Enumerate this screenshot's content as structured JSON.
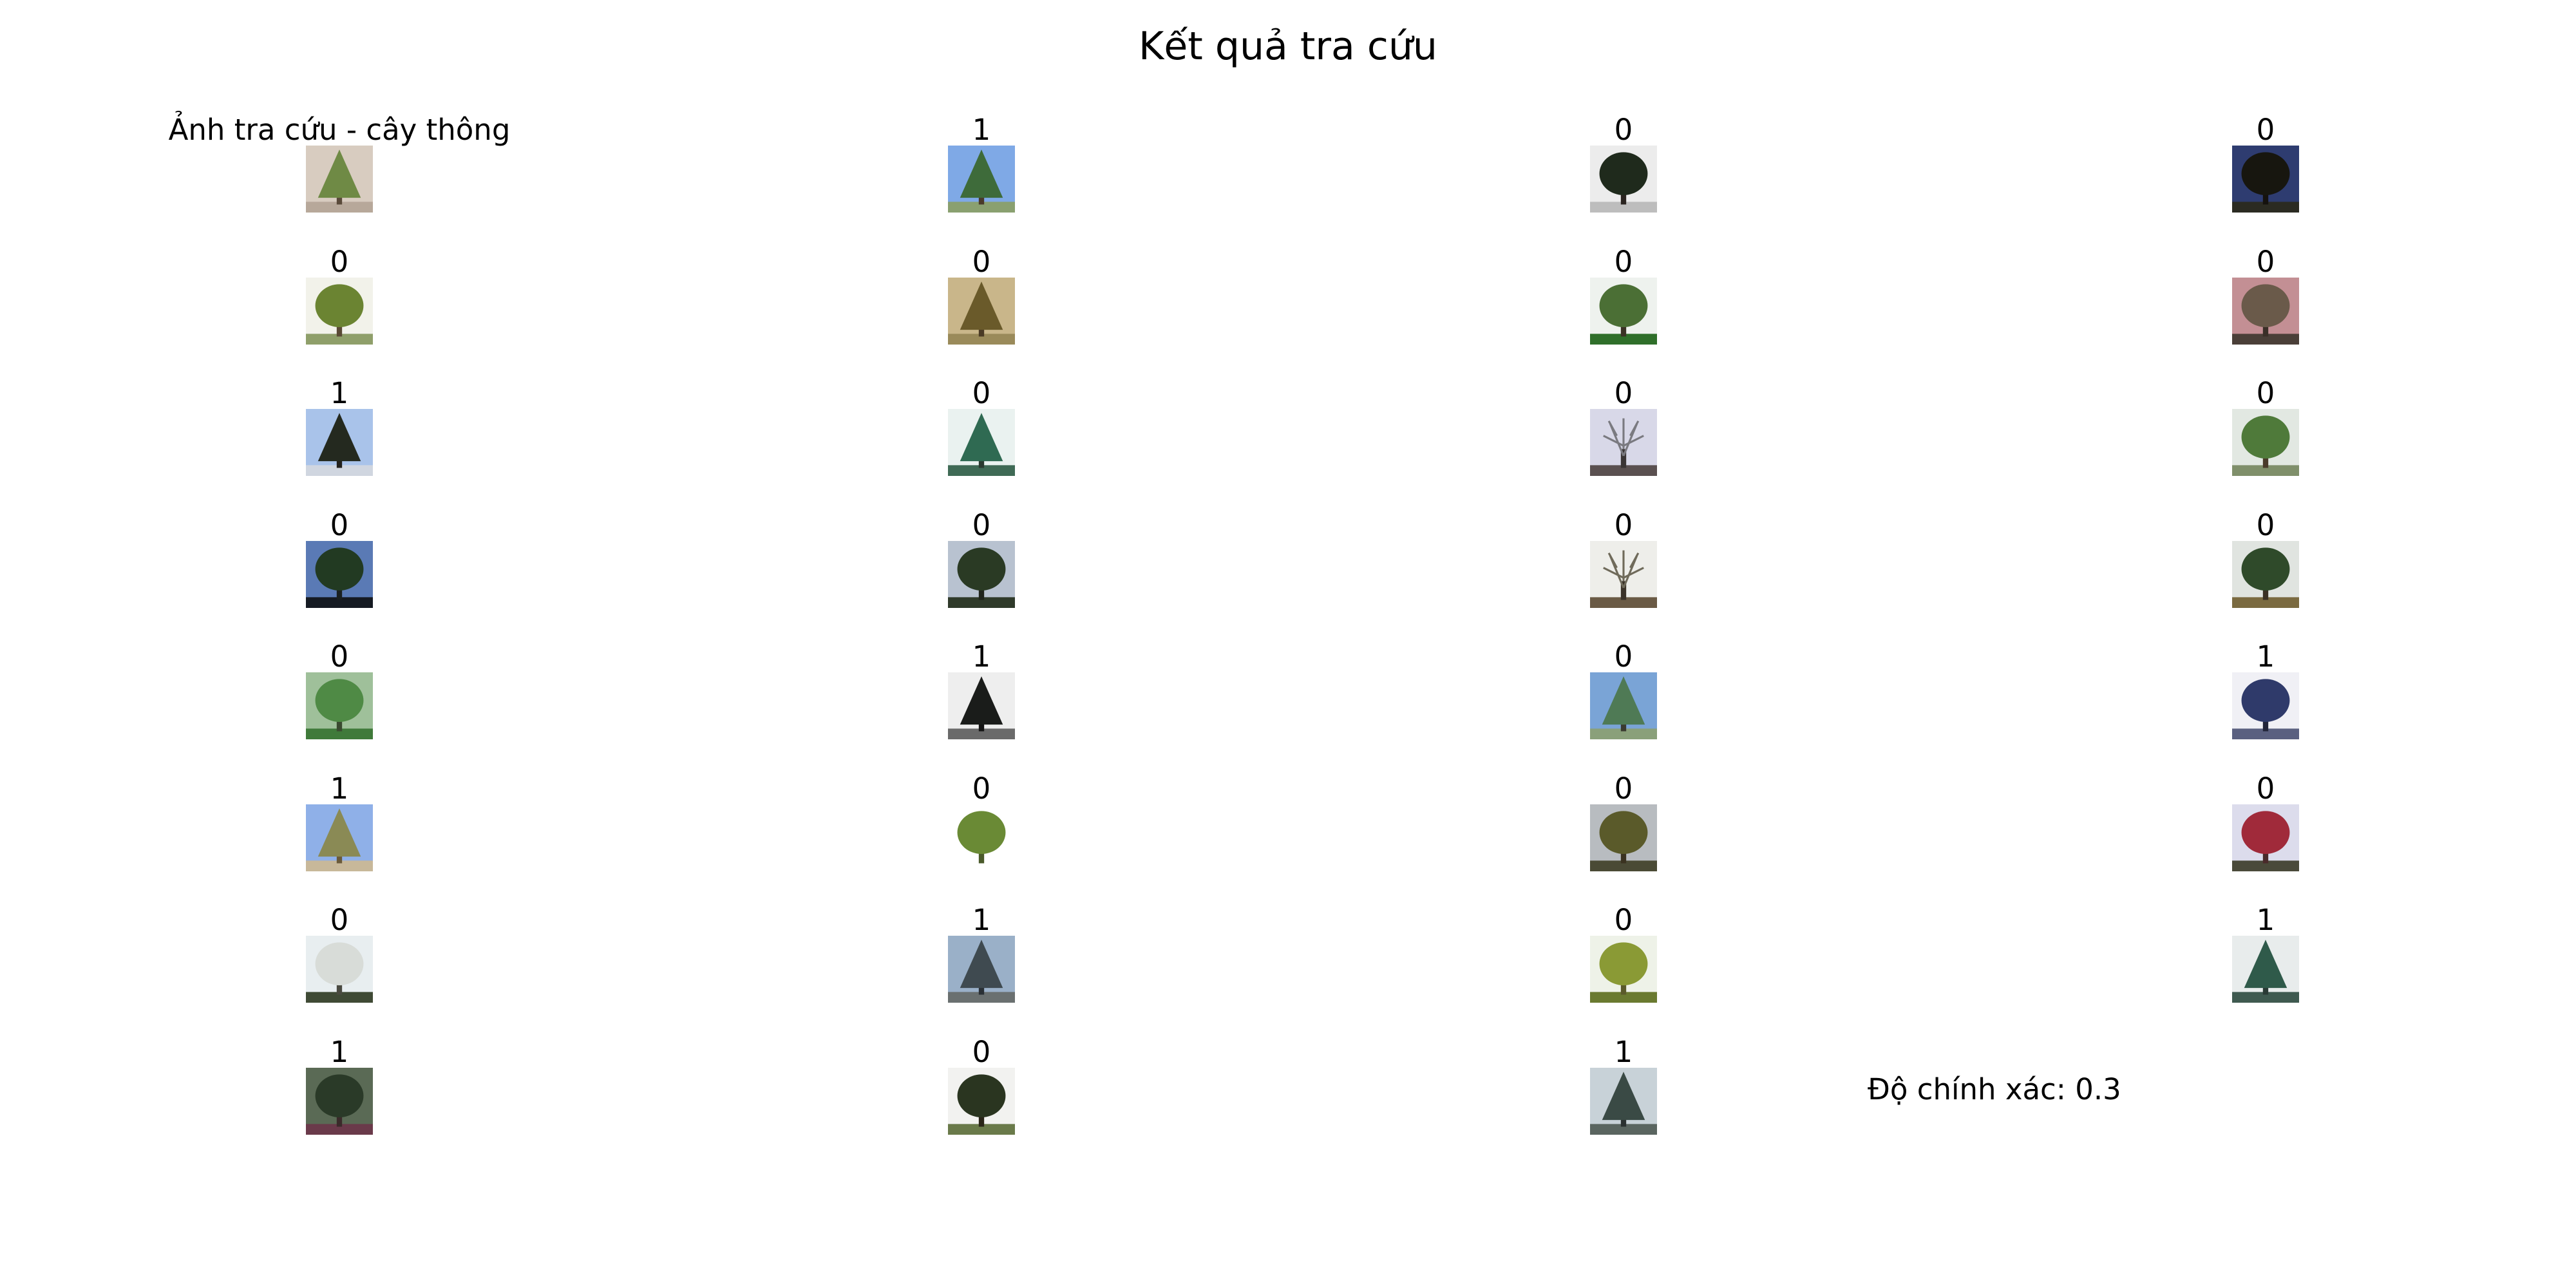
{
  "page": {
    "title": "Kết quả tra cứu",
    "accuracy_text": "Độ chính xác: 0.3"
  },
  "query": {
    "label": "Ảnh tra cứu - cây thông",
    "image": {
      "sky": "#d8ccc0",
      "foliage": "#6f8a45",
      "trunk": "#5a4a3a",
      "ground": "#b7a89a",
      "shape": "cone"
    }
  },
  "results": [
    {
      "label": "1",
      "image": {
        "sky": "#7fa9e6",
        "foliage": "#3e6b3a",
        "trunk": "#4a3a2a",
        "ground": "#8aa070",
        "shape": "cone"
      }
    },
    {
      "label": "0",
      "image": {
        "sky": "#ececec",
        "foliage": "#1f2a1c",
        "trunk": "#2a2420",
        "ground": "#bdbdbd",
        "shape": "round"
      }
    },
    {
      "label": "0",
      "image": {
        "sky": "#2e3c70",
        "foliage": "#17160f",
        "trunk": "#15120e",
        "ground": "#2b2b22",
        "shape": "round"
      }
    },
    {
      "label": "0",
      "image": {
        "sky": "#f2f2ea",
        "foliage": "#6b8432",
        "trunk": "#5a4a35",
        "ground": "#8f9f6a",
        "shape": "round"
      }
    },
    {
      "label": "0",
      "image": {
        "sky": "#c9b68a",
        "foliage": "#6a5a2a",
        "trunk": "#4a3a25",
        "ground": "#9a8a5a",
        "shape": "cone"
      }
    },
    {
      "label": "0",
      "image": {
        "sky": "#eef2ee",
        "foliage": "#4b6f35",
        "trunk": "#3a3225",
        "ground": "#2f6f2a",
        "shape": "round"
      }
    },
    {
      "label": "0",
      "image": {
        "sky": "#c38f94",
        "foliage": "#6a5a4a",
        "trunk": "#3a2f28",
        "ground": "#4a3f38",
        "shape": "round"
      }
    },
    {
      "label": "1",
      "image": {
        "sky": "#a9c3ea",
        "foliage": "#24291f",
        "trunk": "#22201c",
        "ground": "#d0d6e0",
        "shape": "cone"
      }
    },
    {
      "label": "0",
      "image": {
        "sky": "#eaf2f0",
        "foliage": "#2f6a52",
        "trunk": "#2a3a30",
        "ground": "#3f6a55",
        "shape": "cone"
      }
    },
    {
      "label": "0",
      "image": {
        "sky": "#d8d8e8",
        "foliage": "#7a7a80",
        "trunk": "#3a3535",
        "ground": "#5a5050",
        "shape": "bare"
      }
    },
    {
      "label": "0",
      "image": {
        "sky": "#e2e8e2",
        "foliage": "#4f7a3a",
        "trunk": "#4a3a2a",
        "ground": "#7f8f6a",
        "shape": "round"
      }
    },
    {
      "label": "0",
      "image": {
        "sky": "#5a7ab5",
        "foliage": "#223a22",
        "trunk": "#1a2020",
        "ground": "#151a22",
        "shape": "round"
      }
    },
    {
      "label": "0",
      "image": {
        "sky": "#b8c2d0",
        "foliage": "#2a3a24",
        "trunk": "#20251c",
        "ground": "#2f3a2a",
        "shape": "round"
      }
    },
    {
      "label": "0",
      "image": {
        "sky": "#eeeeea",
        "foliage": "#6f6a5a",
        "trunk": "#3a3228",
        "ground": "#6a5a45",
        "shape": "bare"
      }
    },
    {
      "label": "0",
      "image": {
        "sky": "#e0e4e0",
        "foliage": "#2f4a2a",
        "trunk": "#3a3025",
        "ground": "#7a6a40",
        "shape": "round"
      }
    },
    {
      "label": "0",
      "image": {
        "sky": "#9fc09a",
        "foliage": "#4f8a45",
        "trunk": "#3a4a30",
        "ground": "#3f7a3a",
        "shape": "round"
      }
    },
    {
      "label": "1",
      "image": {
        "sky": "#eeeeee",
        "foliage": "#1a1c1a",
        "trunk": "#141414",
        "ground": "#6a6a6a",
        "shape": "cone"
      }
    },
    {
      "label": "0",
      "image": {
        "sky": "#7aa4d6",
        "foliage": "#4f7a55",
        "trunk": "#3a3a30",
        "ground": "#8aa07a",
        "shape": "cone"
      }
    },
    {
      "label": "1",
      "image": {
        "sky": "#f0f0f5",
        "foliage": "#2f3a6a",
        "trunk": "#22253a",
        "ground": "#5a6080",
        "shape": "round"
      }
    },
    {
      "label": "1",
      "image": {
        "sky": "#8fb0e8",
        "foliage": "#8a8a55",
        "trunk": "#6a5a3a",
        "ground": "#c8b89a",
        "shape": "cone"
      }
    },
    {
      "label": "0",
      "image": {
        "sky": "#ffffff",
        "foliage": "#6a8a35",
        "trunk": "#4a5a2a",
        "ground": "#ffffff",
        "shape": "round"
      }
    },
    {
      "label": "0",
      "image": {
        "sky": "#b8bcc0",
        "foliage": "#5a5a2a",
        "trunk": "#3a3220",
        "ground": "#4a4a35",
        "shape": "round"
      }
    },
    {
      "label": "0",
      "image": {
        "sky": "#dcdcec",
        "foliage": "#a02a3a",
        "trunk": "#4a2a2a",
        "ground": "#4a4a3a",
        "shape": "round"
      }
    },
    {
      "label": "0",
      "image": {
        "sky": "#e8eef0",
        "foliage": "#d8dcd8",
        "trunk": "#4a4a40",
        "ground": "#3f4a35",
        "shape": "round"
      }
    },
    {
      "label": "1",
      "image": {
        "sky": "#9ab0c8",
        "foliage": "#3f4a50",
        "trunk": "#2a3035",
        "ground": "#6a7070",
        "shape": "cone"
      }
    },
    {
      "label": "0",
      "image": {
        "sky": "#eef2e8",
        "foliage": "#8a9a35",
        "trunk": "#5a5a2a",
        "ground": "#6a7a30",
        "shape": "round"
      }
    },
    {
      "label": "1",
      "image": {
        "sky": "#e8ecec",
        "foliage": "#2f5a4a",
        "trunk": "#2a3a35",
        "ground": "#3f5a50",
        "shape": "cone"
      }
    },
    {
      "label": "1",
      "image": {
        "sky": "#5a6a55",
        "foliage": "#2a3a28",
        "trunk": "#3a2a2a",
        "ground": "#6a3a4a",
        "shape": "round"
      }
    },
    {
      "label": "0",
      "image": {
        "sky": "#f2f2f0",
        "foliage": "#2a3520",
        "trunk": "#2a2518",
        "ground": "#6a7a4a",
        "shape": "round"
      }
    },
    {
      "label": "1",
      "image": {
        "sky": "#c8d2d8",
        "foliage": "#3a4a45",
        "trunk": "#2a3030",
        "ground": "#5a6560",
        "shape": "cone"
      }
    }
  ]
}
